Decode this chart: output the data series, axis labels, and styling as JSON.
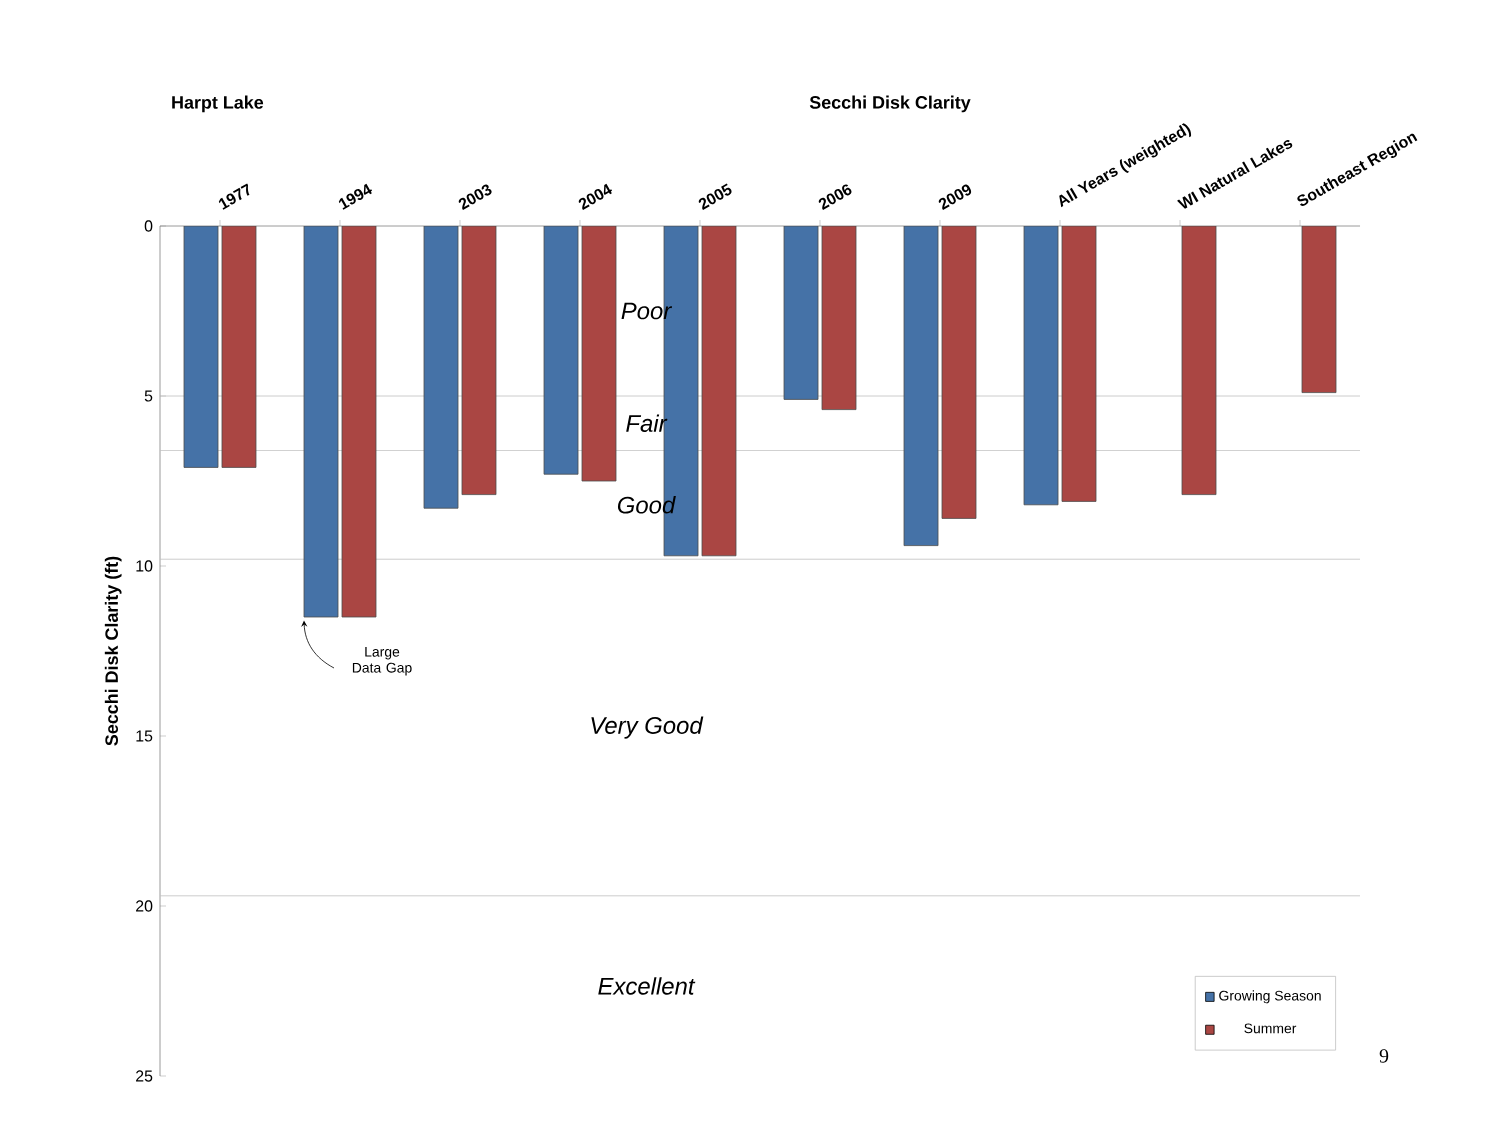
{
  "chart_data": {
    "type": "bar",
    "title": "Secchi Disk Clarity",
    "subtitle": "Harpt Lake",
    "ylabel": "Secchi Disk Clarity (ft)",
    "categories": [
      "1977",
      "1994",
      "2003",
      "2004",
      "2005",
      "2006",
      "2009",
      "All Years (weighted)",
      "WI Natural Lakes",
      "Southeast Region"
    ],
    "series": [
      {
        "name": "Growing Season",
        "color": "#4572a7",
        "values": [
          7.1,
          11.5,
          8.3,
          7.3,
          9.7,
          5.1,
          9.4,
          8.2,
          null,
          null
        ]
      },
      {
        "name": "Summer",
        "color": "#aa4643",
        "values": [
          7.1,
          11.5,
          7.9,
          7.5,
          9.7,
          5.4,
          8.6,
          8.1,
          7.9,
          4.9
        ]
      }
    ],
    "ylim": [
      25,
      0
    ],
    "yticks": [
      0,
      5,
      10,
      15,
      20,
      25
    ],
    "ref_lines": [
      {
        "axis": "y",
        "value": 5
      },
      {
        "axis": "y",
        "value": 6.6
      },
      {
        "axis": "y",
        "value": 9.8
      },
      {
        "axis": "y",
        "value": 19.7
      }
    ],
    "annotations": [
      {
        "text": "Large Data Gap",
        "x": "1994",
        "y": 11.5
      },
      "Poor",
      "Fair",
      "Good",
      "Very Good",
      "Excellent",
      "9"
    ],
    "legend": "bottom right"
  }
}
